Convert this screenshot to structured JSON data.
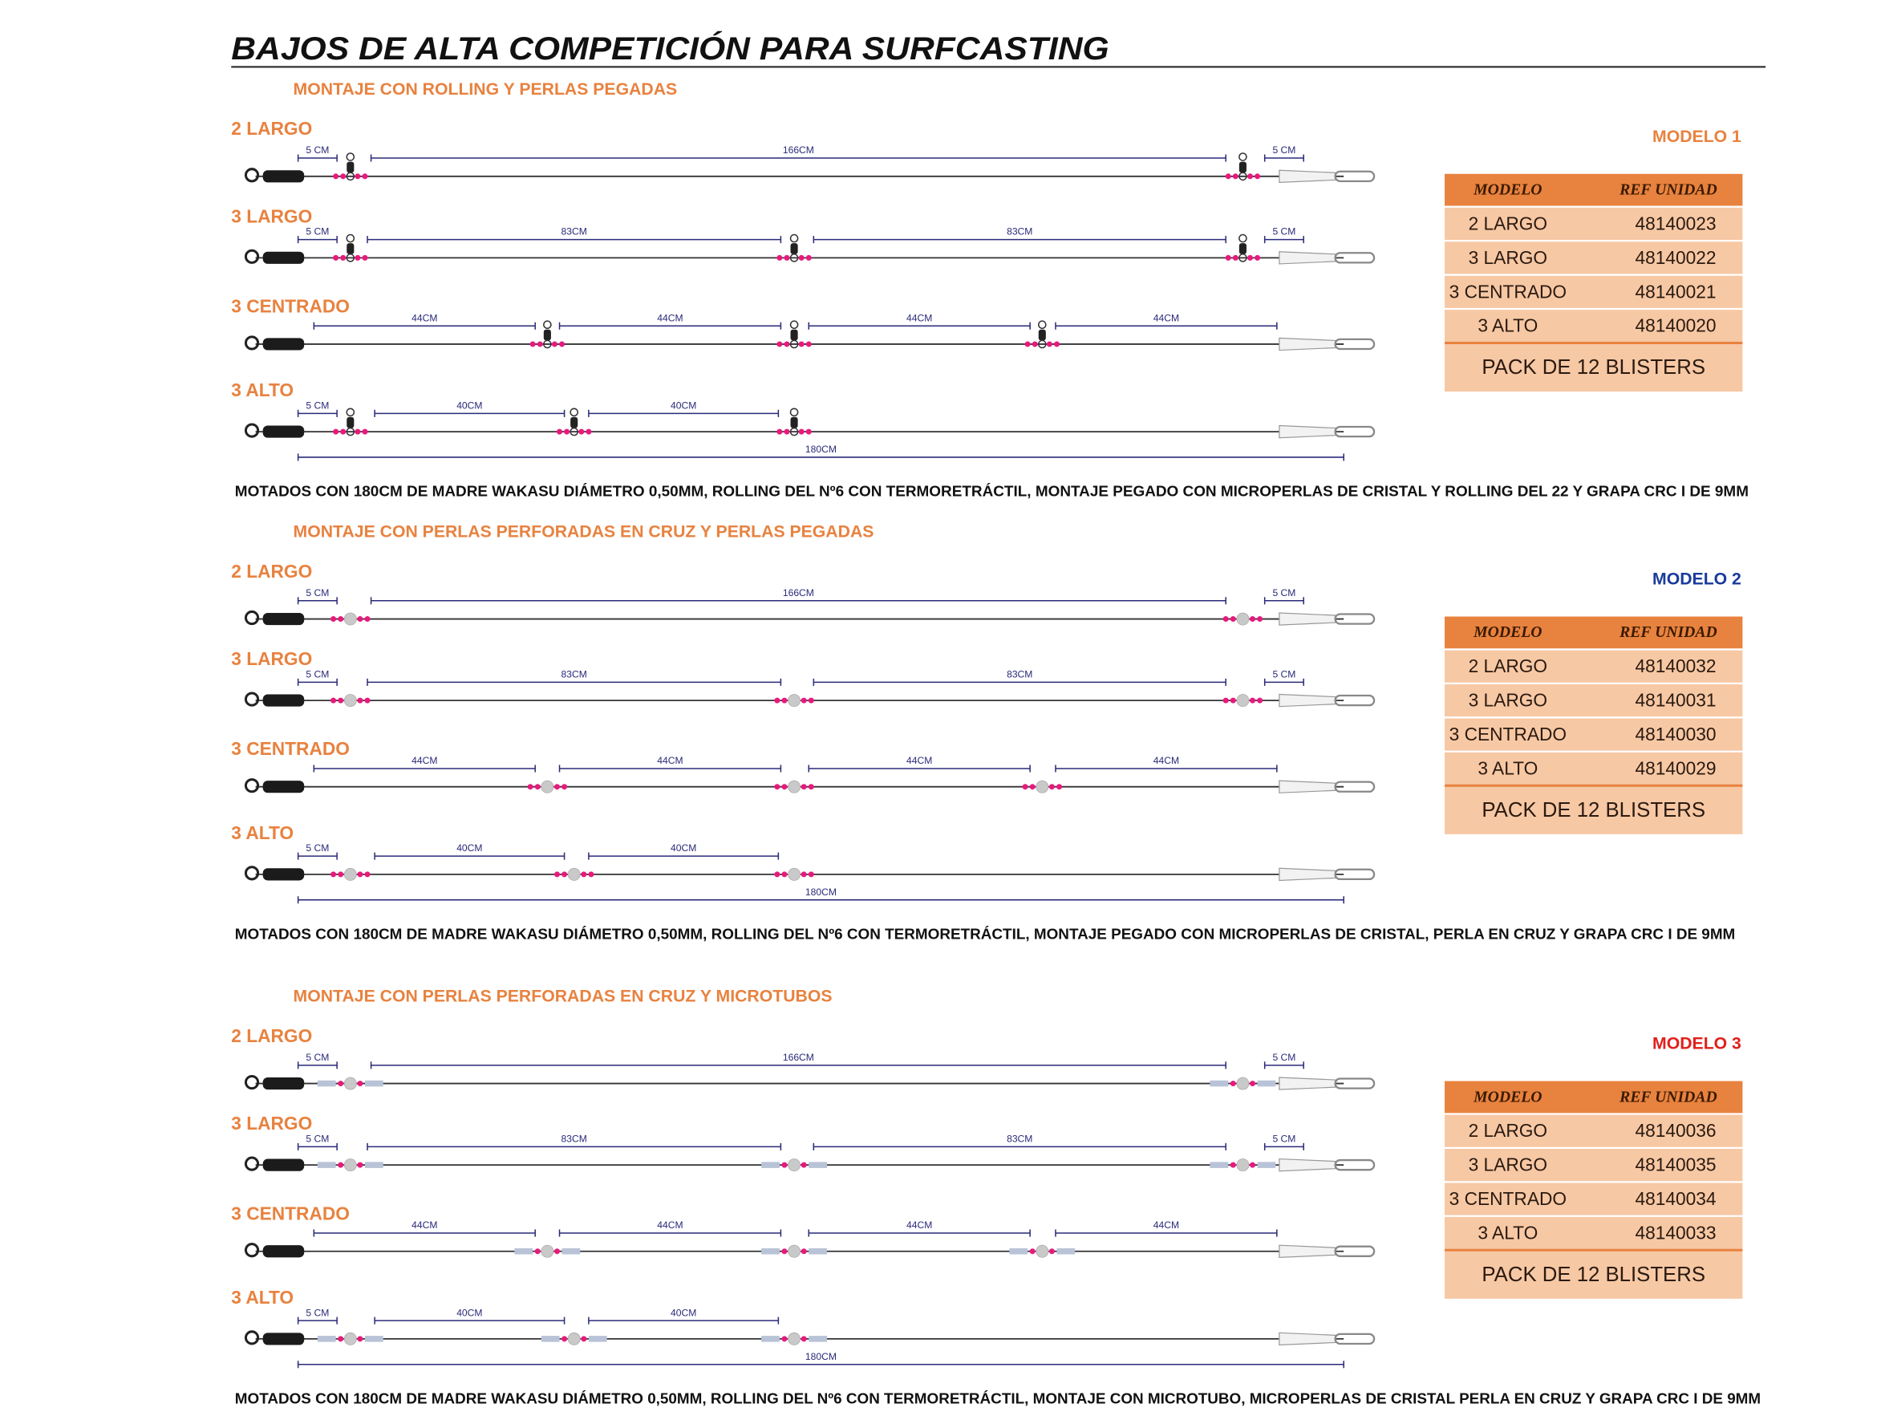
{
  "title": "BAJOS DE ALTA COMPETICIÓN PARA SURFCASTING",
  "sections": [
    {
      "subtitle": "MONTAJE CON ROLLING Y PERLAS PEGADAS",
      "model": "MODELO 1",
      "model_color": "#e8823f",
      "rigs": [
        {
          "name": "2 LARGO",
          "dims": [
            "5 CM",
            "166CM",
            "5 CM"
          ]
        },
        {
          "name": "3 LARGO",
          "dims": [
            "5 CM",
            "83CM",
            "83CM",
            "5 CM"
          ]
        },
        {
          "name": "3 CENTRADO",
          "dims": [
            "44CM",
            "44CM",
            "44CM",
            "44CM"
          ]
        },
        {
          "name": "3 ALTO",
          "dims": [
            "5 CM",
            "40CM",
            "40CM"
          ],
          "total": "180CM"
        }
      ],
      "table": {
        "header": [
          "MODELO",
          "REF UNIDAD"
        ],
        "rows": [
          [
            "2 LARGO",
            "48140023"
          ],
          [
            "3 LARGO",
            "48140022"
          ],
          [
            "3 CENTRADO",
            "48140021"
          ],
          [
            "3 ALTO",
            "48140020"
          ]
        ],
        "footer": "PACK DE 12 BLISTERS"
      },
      "note": "MOTADOS CON 180CM DE MADRE WAKASU DIÁMETRO 0,50MM, ROLLING  DEL Nº6 CON TERMORETRÁCTIL, MONTAJE PEGADO CON MICROPERLAS DE CRISTAL Y ROLLING DEL 22 Y GRAPA CRC I DE 9MM"
    },
    {
      "subtitle": "MONTAJE CON PERLAS PERFORADAS EN CRUZ Y PERLAS PEGADAS",
      "model": "MODELO 2",
      "model_color": "#1a3b9c",
      "rigs": [
        {
          "name": "2 LARGO",
          "dims": [
            "5 CM",
            "166CM",
            "5 CM"
          ]
        },
        {
          "name": "3 LARGO",
          "dims": [
            "5 CM",
            "83CM",
            "83CM",
            "5 CM"
          ]
        },
        {
          "name": "3 CENTRADO",
          "dims": [
            "44CM",
            "44CM",
            "44CM",
            "44CM"
          ]
        },
        {
          "name": "3 ALTO",
          "dims": [
            "5 CM",
            "40CM",
            "40CM"
          ],
          "total": "180CM"
        }
      ],
      "table": {
        "header": [
          "MODELO",
          "REF UNIDAD"
        ],
        "rows": [
          [
            "2 LARGO",
            "48140032"
          ],
          [
            "3 LARGO",
            "48140031"
          ],
          [
            "3 CENTRADO",
            "48140030"
          ],
          [
            "3 ALTO",
            "48140029"
          ]
        ],
        "footer": "PACK DE 12 BLISTERS"
      },
      "note": "MOTADOS CON 180CM DE MADRE WAKASU DIÁMETRO 0,50MM, ROLLING  DEL Nº6 CON TERMORETRÁCTIL, MONTAJE PEGADO CON MICROPERLAS DE CRISTAL, PERLA EN CRUZ Y GRAPA CRC I DE 9MM"
    },
    {
      "subtitle": "MONTAJE CON PERLAS PERFORADAS EN CRUZ Y MICROTUBOS",
      "model": "MODELO 3",
      "model_color": "#e0201b",
      "rigs": [
        {
          "name": "2 LARGO",
          "dims": [
            "5 CM",
            "166CM",
            "5 CM"
          ]
        },
        {
          "name": "3 LARGO",
          "dims": [
            "5 CM",
            "83CM",
            "83CM",
            "5 CM"
          ]
        },
        {
          "name": "3 CENTRADO",
          "dims": [
            "44CM",
            "44CM",
            "44CM",
            "44CM"
          ]
        },
        {
          "name": "3 ALTO",
          "dims": [
            "5 CM",
            "40CM",
            "40CM"
          ],
          "total": "180CM"
        }
      ],
      "table": {
        "header": [
          "MODELO",
          "REF UNIDAD"
        ],
        "rows": [
          [
            "2 LARGO",
            "48140036"
          ],
          [
            "3 LARGO",
            "48140035"
          ],
          [
            "3 CENTRADO",
            "48140034"
          ],
          [
            "3 ALTO",
            "48140033"
          ]
        ],
        "footer": "PACK DE 12 BLISTERS"
      },
      "note": "MOTADOS CON 180CM DE MADRE WAKASU DIÁMETRO 0,50MM, ROLLING  DEL Nº6 CON TERMORETRÁCTIL, MONTAJE CON MICROTUBO, MICROPERLAS DE CRISTAL PERLA EN CRUZ Y GRAPA CRC I DE 9MM"
    }
  ]
}
